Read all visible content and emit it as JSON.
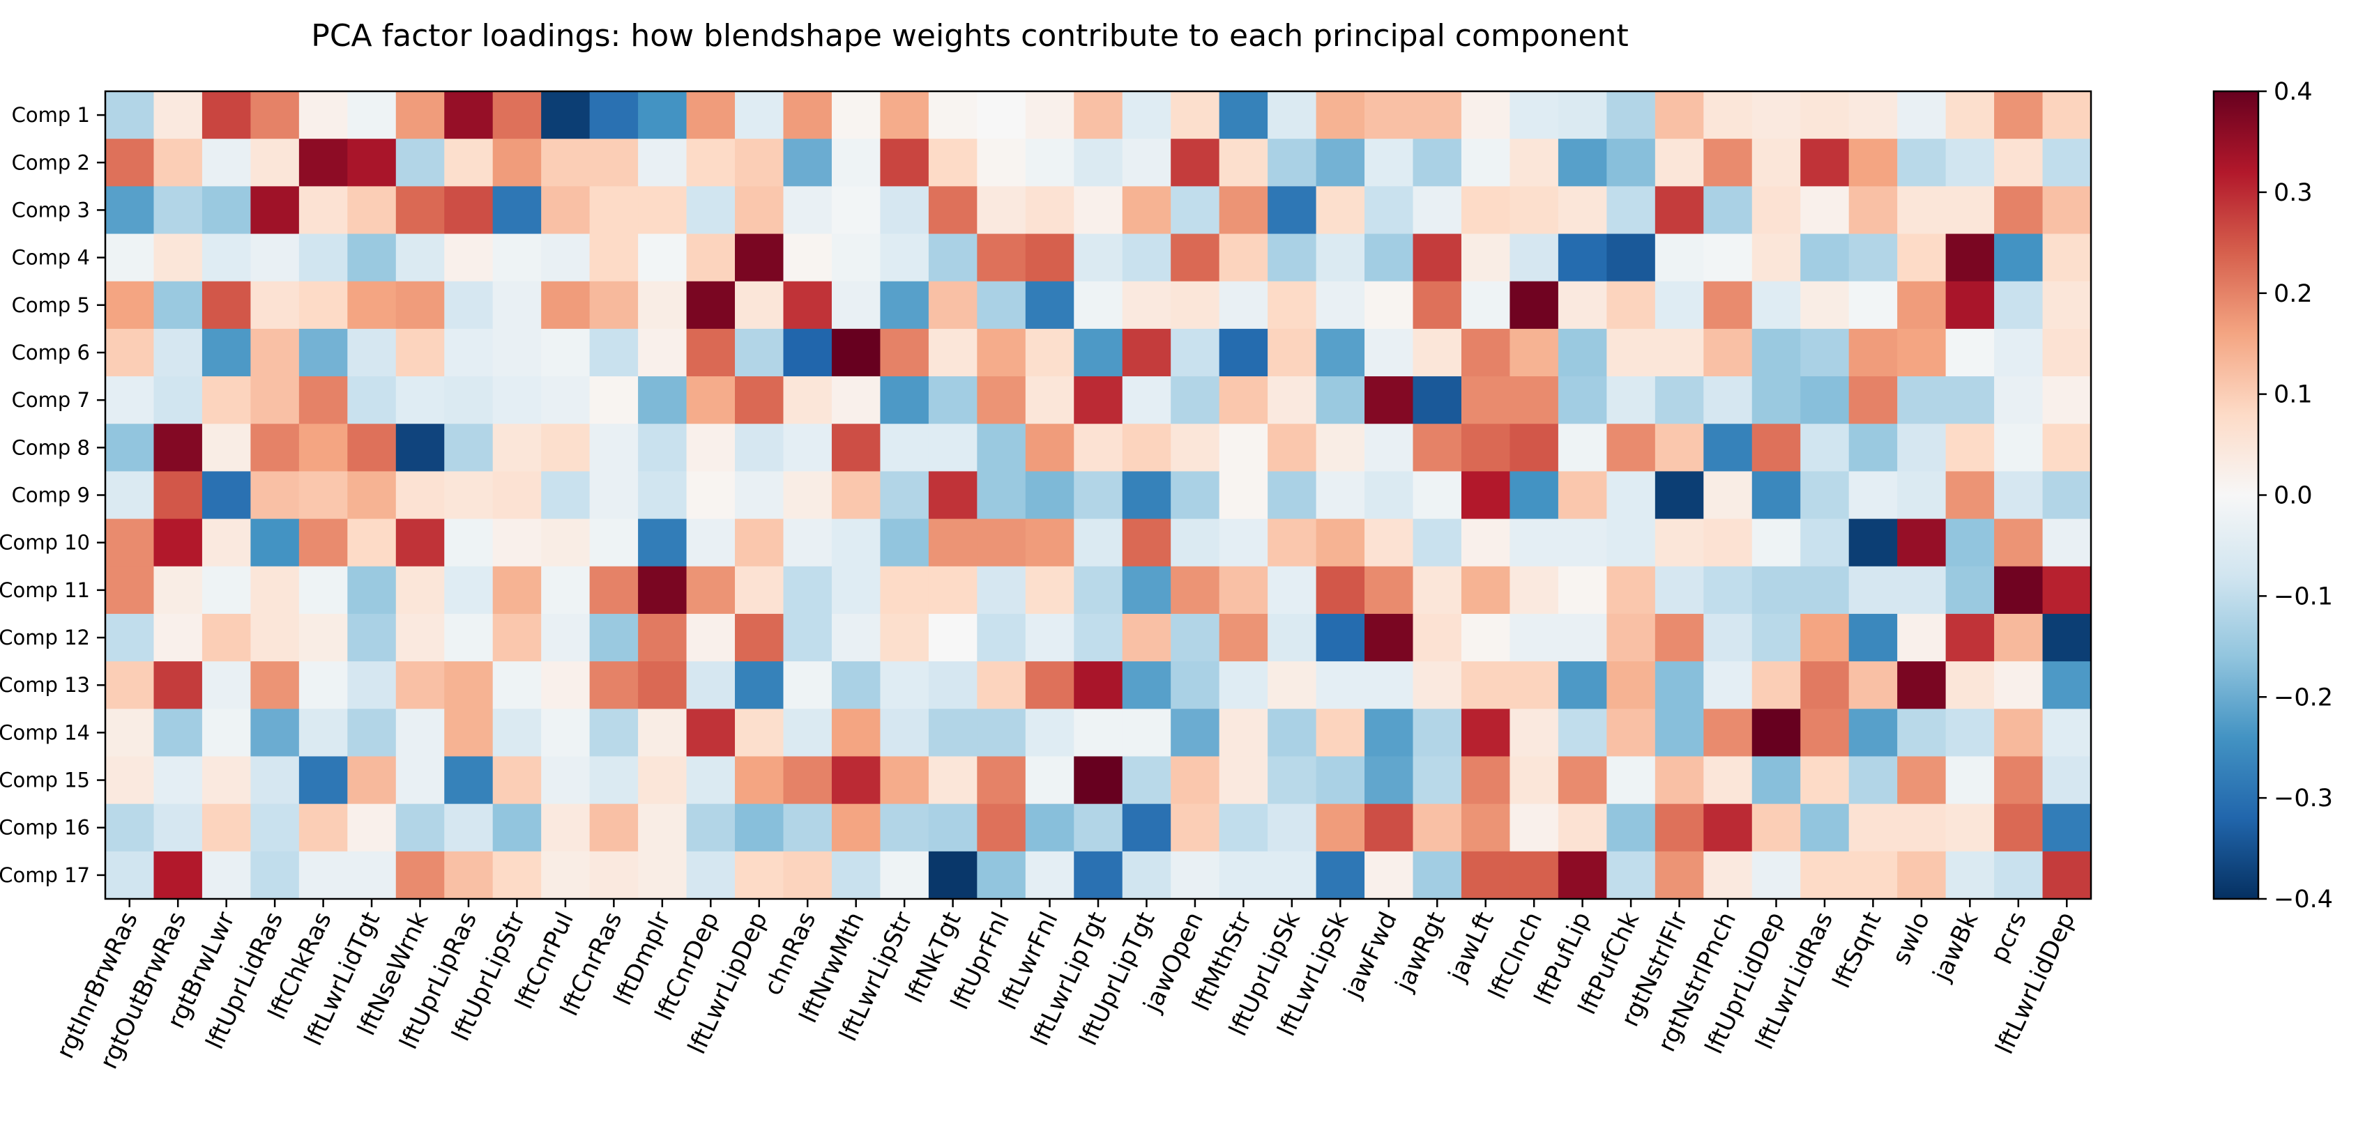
{
  "chart_data": {
    "type": "heatmap",
    "title": "PCA factor loadings: how blendshape weights contribute to each principal component",
    "xlabel": "",
    "ylabel": "",
    "colormap": "RdBu_r",
    "vmin": -0.4,
    "vmax": 0.4,
    "colorbar_ticks": [
      -0.4,
      -0.3,
      -0.2,
      -0.1,
      0.0,
      0.1,
      0.2,
      0.3,
      0.4
    ],
    "colorbar_tick_labels": [
      "−0.4",
      "−0.3",
      "−0.2",
      "−0.1",
      "0.0",
      "0.1",
      "0.2",
      "0.3",
      "0.4"
    ],
    "rows": [
      "Comp 1",
      "Comp 2",
      "Comp 3",
      "Comp 4",
      "Comp 5",
      "Comp 6",
      "Comp 7",
      "Comp 8",
      "Comp 9",
      "Comp 10",
      "Comp 11",
      "Comp 12",
      "Comp 13",
      "Comp 14",
      "Comp 15",
      "Comp 16",
      "Comp 17"
    ],
    "columns": [
      "rgtInrBrwRas",
      "rgtOutBrwRas",
      "rgtBrwLwr",
      "lftUprLidRas",
      "lftChkRas",
      "lftLwrLidTgt",
      "lftNseWrnk",
      "lftUprLipRas",
      "lftUprLipStr",
      "lftCnrPul",
      "lftCnrRas",
      "lftDmplr",
      "lftCnrDep",
      "lftLwrLipDep",
      "chnRas",
      "lftNrwMth",
      "lftLwrLipStr",
      "lftNkTgt",
      "lftUprFnl",
      "lftLwrFnl",
      "lftLwrLipTgt",
      "lftUprLipTgt",
      "jawOpen",
      "lftMthStr",
      "lftUprLipSk",
      "lftLwrLipSk",
      "jawFwd",
      "jawRgt",
      "jawLft",
      "lftClnch",
      "lftPufLip",
      "lftPufChk",
      "rgtNstrlFlr",
      "rgtNstrlPnch",
      "lftUprLidDep",
      "lftLwrLidRas",
      "lftSqnt",
      "swlo",
      "jawBk",
      "pcrs",
      "lftLwrLidDep"
    ],
    "values": [
      [
        -0.12,
        0.04,
        0.27,
        0.2,
        0.02,
        -0.02,
        0.17,
        0.35,
        0.22,
        -0.38,
        -0.3,
        -0.24,
        0.17,
        -0.05,
        0.17,
        0.01,
        0.15,
        0.01,
        0.0,
        0.02,
        0.12,
        -0.05,
        0.07,
        -0.27,
        -0.06,
        0.14,
        0.12,
        0.12,
        0.02,
        -0.05,
        -0.06,
        -0.12,
        0.12,
        0.05,
        0.04,
        0.05,
        0.04,
        -0.03,
        0.07,
        0.18,
        0.09
      ],
      [
        0.22,
        0.1,
        -0.03,
        0.05,
        0.36,
        0.33,
        -0.12,
        0.07,
        0.17,
        0.1,
        0.1,
        -0.03,
        0.08,
        0.1,
        -0.2,
        -0.02,
        0.27,
        0.08,
        0.01,
        -0.02,
        -0.06,
        -0.03,
        0.28,
        0.07,
        -0.13,
        -0.19,
        -0.05,
        -0.13,
        -0.02,
        0.05,
        -0.22,
        -0.17,
        0.05,
        0.19,
        0.05,
        0.29,
        0.16,
        -0.11,
        -0.08,
        0.06,
        -0.1
      ],
      [
        -0.22,
        -0.12,
        -0.15,
        0.34,
        0.06,
        0.1,
        0.23,
        0.26,
        -0.29,
        0.12,
        0.08,
        0.08,
        -0.08,
        0.11,
        -0.03,
        -0.01,
        -0.07,
        0.22,
        0.04,
        0.06,
        0.02,
        0.14,
        -0.1,
        0.18,
        -0.29,
        0.07,
        -0.09,
        -0.03,
        0.08,
        0.07,
        0.05,
        -0.1,
        0.28,
        -0.13,
        0.06,
        0.02,
        0.12,
        0.05,
        0.05,
        0.2,
        0.12
      ],
      [
        -0.02,
        0.05,
        -0.05,
        -0.03,
        -0.08,
        -0.15,
        -0.06,
        0.02,
        -0.02,
        -0.03,
        0.08,
        -0.01,
        0.09,
        0.38,
        0.01,
        -0.02,
        -0.05,
        -0.13,
        0.22,
        0.24,
        -0.06,
        -0.09,
        0.23,
        0.09,
        -0.13,
        -0.06,
        -0.14,
        0.28,
        0.03,
        -0.07,
        -0.31,
        -0.34,
        -0.02,
        -0.01,
        0.05,
        -0.14,
        -0.12,
        0.08,
        0.38,
        -0.24,
        0.07
      ],
      [
        0.16,
        -0.15,
        0.25,
        0.06,
        0.08,
        0.16,
        0.17,
        -0.07,
        -0.03,
        0.17,
        0.13,
        0.03,
        0.38,
        0.05,
        0.29,
        -0.03,
        -0.22,
        0.12,
        -0.13,
        -0.28,
        -0.02,
        0.04,
        0.05,
        -0.03,
        0.08,
        -0.03,
        0.01,
        0.22,
        -0.02,
        0.39,
        0.04,
        0.09,
        -0.05,
        0.19,
        -0.05,
        0.03,
        -0.01,
        0.17,
        0.33,
        -0.09,
        0.05
      ],
      [
        0.1,
        -0.07,
        -0.23,
        0.12,
        -0.19,
        -0.07,
        0.09,
        -0.04,
        -0.03,
        -0.02,
        -0.09,
        0.02,
        0.23,
        -0.12,
        -0.32,
        0.4,
        0.2,
        0.05,
        0.15,
        0.07,
        -0.23,
        0.28,
        -0.09,
        -0.31,
        0.09,
        -0.22,
        -0.03,
        0.05,
        0.2,
        0.14,
        -0.15,
        0.05,
        0.05,
        0.12,
        -0.15,
        -0.13,
        0.17,
        0.16,
        -0.01,
        -0.04,
        0.06
      ],
      [
        -0.04,
        -0.08,
        0.09,
        0.12,
        0.2,
        -0.09,
        -0.05,
        -0.06,
        -0.04,
        -0.03,
        0.01,
        -0.18,
        0.15,
        0.23,
        0.05,
        0.02,
        -0.23,
        -0.14,
        0.18,
        0.05,
        0.3,
        -0.04,
        -0.12,
        0.11,
        0.04,
        -0.15,
        0.37,
        -0.34,
        0.19,
        0.19,
        -0.14,
        -0.06,
        -0.12,
        -0.07,
        -0.15,
        -0.17,
        0.2,
        -0.12,
        -0.12,
        -0.03,
        0.02
      ],
      [
        -0.16,
        0.37,
        0.03,
        0.2,
        0.16,
        0.22,
        -0.37,
        -0.12,
        0.05,
        0.07,
        -0.03,
        -0.09,
        0.02,
        -0.07,
        -0.04,
        0.26,
        -0.05,
        -0.05,
        -0.15,
        0.17,
        0.06,
        0.09,
        0.05,
        0.01,
        0.11,
        0.03,
        -0.03,
        0.2,
        0.23,
        0.25,
        -0.02,
        0.19,
        0.11,
        -0.27,
        0.22,
        -0.08,
        -0.15,
        -0.07,
        0.08,
        -0.02,
        0.08
      ],
      [
        -0.06,
        0.25,
        -0.3,
        0.12,
        0.11,
        0.14,
        0.06,
        0.05,
        0.06,
        -0.09,
        -0.03,
        -0.08,
        0.01,
        -0.03,
        0.03,
        0.11,
        -0.12,
        0.29,
        -0.15,
        -0.18,
        -0.12,
        -0.27,
        -0.13,
        0.01,
        -0.13,
        -0.03,
        -0.06,
        -0.02,
        0.32,
        -0.24,
        0.11,
        -0.05,
        -0.38,
        0.03,
        -0.26,
        -0.11,
        -0.04,
        -0.06,
        0.18,
        -0.07,
        -0.12
      ],
      [
        0.19,
        0.32,
        0.04,
        -0.24,
        0.19,
        0.08,
        0.29,
        -0.02,
        0.02,
        0.03,
        -0.02,
        -0.28,
        -0.03,
        0.11,
        -0.03,
        -0.05,
        -0.16,
        0.18,
        0.18,
        0.17,
        -0.06,
        0.23,
        -0.06,
        -0.04,
        0.11,
        0.14,
        0.06,
        -0.09,
        0.02,
        -0.04,
        -0.04,
        -0.05,
        0.05,
        0.06,
        -0.02,
        -0.09,
        -0.38,
        0.35,
        -0.16,
        0.18,
        -0.03
      ],
      [
        0.19,
        0.03,
        -0.02,
        0.05,
        -0.02,
        -0.15,
        0.05,
        -0.05,
        0.14,
        -0.02,
        0.2,
        0.38,
        0.18,
        0.06,
        -0.1,
        -0.05,
        0.08,
        0.08,
        -0.07,
        0.07,
        -0.11,
        -0.22,
        0.18,
        0.12,
        -0.04,
        0.25,
        0.19,
        0.05,
        0.14,
        0.04,
        0.01,
        0.11,
        -0.07,
        -0.1,
        -0.12,
        -0.12,
        -0.07,
        -0.07,
        -0.15,
        0.39,
        0.31
      ],
      [
        -0.1,
        0.02,
        0.1,
        0.05,
        0.03,
        -0.13,
        0.04,
        -0.02,
        0.11,
        -0.03,
        -0.15,
        0.21,
        0.02,
        0.23,
        -0.1,
        -0.03,
        0.07,
        0.0,
        -0.09,
        -0.04,
        -0.1,
        0.12,
        -0.12,
        0.18,
        -0.06,
        -0.31,
        0.38,
        0.06,
        0.01,
        -0.03,
        -0.03,
        0.12,
        0.19,
        -0.07,
        -0.11,
        0.16,
        -0.26,
        0.02,
        0.29,
        0.13,
        -0.38
      ],
      [
        0.1,
        0.28,
        -0.03,
        0.18,
        -0.02,
        -0.07,
        0.12,
        0.14,
        -0.02,
        0.02,
        0.2,
        0.23,
        -0.07,
        -0.27,
        -0.02,
        -0.13,
        -0.05,
        -0.07,
        0.09,
        0.22,
        0.33,
        -0.22,
        -0.13,
        -0.05,
        0.03,
        -0.04,
        -0.04,
        0.04,
        0.09,
        0.09,
        -0.23,
        0.14,
        -0.17,
        -0.04,
        0.1,
        0.21,
        0.12,
        0.38,
        0.05,
        0.02,
        -0.23
      ],
      [
        0.03,
        -0.14,
        -0.02,
        -0.2,
        -0.06,
        -0.12,
        -0.03,
        0.14,
        -0.06,
        -0.02,
        -0.11,
        0.03,
        0.29,
        0.07,
        -0.06,
        0.16,
        -0.07,
        -0.12,
        -0.12,
        -0.05,
        -0.02,
        -0.02,
        -0.2,
        0.04,
        -0.13,
        0.09,
        -0.22,
        -0.12,
        0.31,
        0.04,
        -0.1,
        0.12,
        -0.17,
        0.19,
        0.4,
        0.2,
        -0.22,
        -0.11,
        -0.09,
        0.13,
        -0.05
      ],
      [
        0.04,
        -0.04,
        0.04,
        -0.07,
        -0.29,
        0.13,
        -0.03,
        -0.27,
        0.1,
        -0.03,
        -0.06,
        0.05,
        -0.06,
        0.16,
        0.2,
        0.3,
        0.15,
        0.05,
        0.2,
        -0.02,
        0.4,
        -0.11,
        0.11,
        0.04,
        -0.11,
        -0.13,
        -0.21,
        -0.11,
        0.2,
        0.05,
        0.19,
        -0.02,
        0.12,
        0.05,
        -0.17,
        0.08,
        -0.12,
        0.18,
        -0.02,
        0.2,
        -0.07
      ],
      [
        -0.11,
        -0.07,
        0.09,
        -0.09,
        0.1,
        0.02,
        -0.12,
        -0.07,
        -0.16,
        0.04,
        0.12,
        0.03,
        -0.12,
        -0.17,
        -0.12,
        0.16,
        -0.12,
        -0.13,
        0.22,
        -0.17,
        -0.12,
        -0.3,
        0.1,
        -0.1,
        -0.07,
        0.17,
        0.26,
        0.12,
        0.18,
        0.02,
        0.06,
        -0.16,
        0.22,
        0.3,
        0.1,
        -0.16,
        0.06,
        0.06,
        0.05,
        0.23,
        -0.28
      ],
      [
        -0.08,
        0.32,
        -0.03,
        -0.1,
        -0.03,
        -0.03,
        0.19,
        0.12,
        0.08,
        0.03,
        0.04,
        0.03,
        -0.07,
        0.08,
        0.09,
        -0.09,
        -0.02,
        -0.39,
        -0.16,
        -0.04,
        -0.3,
        -0.08,
        -0.03,
        -0.05,
        -0.05,
        -0.29,
        0.02,
        -0.14,
        0.24,
        0.24,
        0.36,
        -0.1,
        0.18,
        0.04,
        -0.03,
        0.08,
        0.08,
        0.11,
        -0.06,
        -0.09,
        0.28
      ]
    ]
  }
}
